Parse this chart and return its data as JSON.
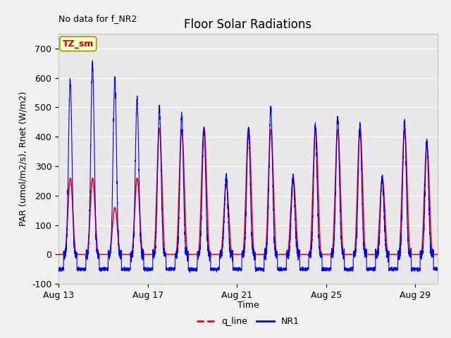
{
  "title": "Floor Solar Radiations",
  "xlabel": "Time",
  "ylabel": "PAR (umol/m2/s), Rnet (W/m2)",
  "no_data_text": "No data for f_NR2",
  "legend_label_text": "TZ_sm",
  "ylim": [
    -100,
    750
  ],
  "yticks": [
    -100,
    0,
    100,
    200,
    300,
    400,
    500,
    600,
    700
  ],
  "xtick_labels": [
    "Aug 13",
    "Aug 17",
    "Aug 21",
    "Aug 25",
    "Aug 29"
  ],
  "plot_bg_color": "#e8e8e8",
  "fig_bg_color": "#f0f0f0",
  "line_red_color": "#ff0000",
  "line_blue_color": "#0000ff",
  "legend_q_line": "q_line",
  "legend_NR1": "NR1",
  "num_days": 17,
  "samples_per_day": 288,
  "red_peaks": [
    260,
    260,
    160,
    260,
    430,
    425,
    430,
    240,
    430,
    425,
    260,
    430,
    425,
    430,
    260,
    425,
    375
  ],
  "blue_peaks": [
    590,
    645,
    590,
    525,
    500,
    475,
    425,
    265,
    430,
    500,
    260,
    435,
    470,
    435,
    265,
    450,
    380
  ],
  "night_val": -50,
  "xtick_positions": [
    0,
    4,
    8,
    12,
    16
  ]
}
